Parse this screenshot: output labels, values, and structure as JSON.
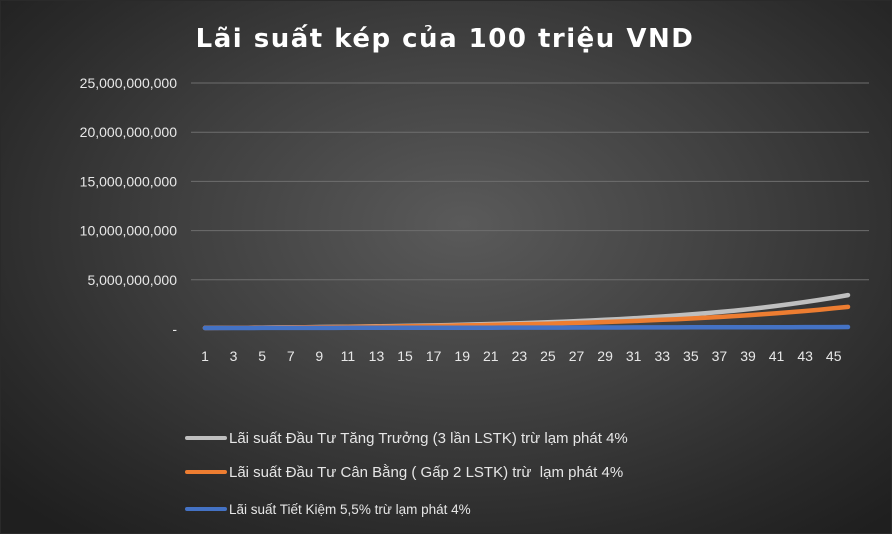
{
  "chart_data": {
    "type": "line",
    "title": "Lãi suất kép của 100 triệu VND",
    "xlabel": "",
    "ylabel": "",
    "ylim": [
      0,
      25000000000
    ],
    "y_ticks": [
      {
        "value": 0,
        "label": "-"
      },
      {
        "value": 5000000000,
        "label": "5,000,000,000"
      },
      {
        "value": 10000000000,
        "label": "10,000,000,000"
      },
      {
        "value": 15000000000,
        "label": "15,000,000,000"
      },
      {
        "value": 20000000000,
        "label": "20,000,000,000"
      },
      {
        "value": 25000000000,
        "label": "25,000,000,000"
      }
    ],
    "x": [
      1,
      2,
      3,
      4,
      5,
      6,
      7,
      8,
      9,
      10,
      11,
      12,
      13,
      14,
      15,
      16,
      17,
      18,
      19,
      20,
      21,
      22,
      23,
      24,
      25,
      26,
      27,
      28,
      29,
      30,
      31,
      32,
      33,
      34,
      35,
      36,
      37,
      38,
      39,
      40,
      41,
      42,
      43,
      44,
      45,
      46
    ],
    "x_tick_labels": [
      "1",
      "3",
      "5",
      "7",
      "9",
      "11",
      "13",
      "15",
      "17",
      "19",
      "21",
      "23",
      "25",
      "27",
      "29",
      "31",
      "33",
      "35",
      "37",
      "39",
      "41",
      "43",
      "45"
    ],
    "grid": "horizontal",
    "legend_position": "bottom",
    "series": [
      {
        "name": "Lãi suất Đầu Tư Tăng Trưởng (3 lần LSTK) trừ lạm phát 4%",
        "color": "#bfbfbf",
        "values": [
          108000000,
          117000000,
          126000000,
          136000000,
          147000000,
          159000000,
          171000000,
          185000000,
          200000000,
          216000000,
          233000000,
          252000000,
          272000000,
          294000000,
          317000000,
          343000000,
          370000000,
          400000000,
          432000000,
          466000000,
          504000000,
          544000000,
          588000000,
          635000000,
          686000000,
          740000000,
          800000000,
          864000000,
          933000000,
          1007000000,
          1088000000,
          1175000000,
          1269000000,
          1370000000,
          1480000000,
          1598000000,
          1726000000,
          1864000000,
          2013000000,
          2174000000,
          2348000000,
          2536000000,
          2739000000,
          2958000000,
          3195000000,
          3450000000
        ]
      },
      {
        "name": "Lãi suất Đầu Tư Cân Bằng ( Gấp 2 LSTK) trừ  lạm phát 4%",
        "color": "#ed7d31",
        "values": [
          107000000,
          114000000,
          122000000,
          131000000,
          140000000,
          150000000,
          161000000,
          172000000,
          184000000,
          197000000,
          210000000,
          225000000,
          241000000,
          258000000,
          276000000,
          295000000,
          316000000,
          338000000,
          362000000,
          387000000,
          414000000,
          443000000,
          474000000,
          507000000,
          543000000,
          581000000,
          621000000,
          665000000,
          711000000,
          761000000,
          814000000,
          871000000,
          932000000,
          997000000,
          1067000000,
          1142000000,
          1222000000,
          1307000000,
          1399000000,
          1497000000,
          1602000000,
          1714000000,
          1834000000,
          1962000000,
          2099000000,
          2246000000
        ]
      },
      {
        "name": "Lãi suất Tiết Kiệm 5,5% trừ lạm phát 4%",
        "color": "#4472c4",
        "values": [
          101500000,
          103000000,
          104600000,
          106100000,
          107700000,
          109300000,
          111000000,
          112700000,
          114300000,
          116100000,
          117800000,
          119600000,
          121400000,
          123200000,
          125000000,
          126900000,
          128800000,
          130700000,
          132700000,
          134700000,
          136700000,
          138800000,
          140800000,
          142900000,
          145100000,
          147300000,
          149500000,
          151700000,
          154000000,
          156300000,
          158600000,
          161000000,
          163400000,
          165900000,
          168400000,
          170900000,
          173500000,
          176100000,
          178700000,
          181400000,
          184100000,
          186900000,
          189700000,
          192500000,
          195400000,
          198300000
        ]
      }
    ]
  }
}
